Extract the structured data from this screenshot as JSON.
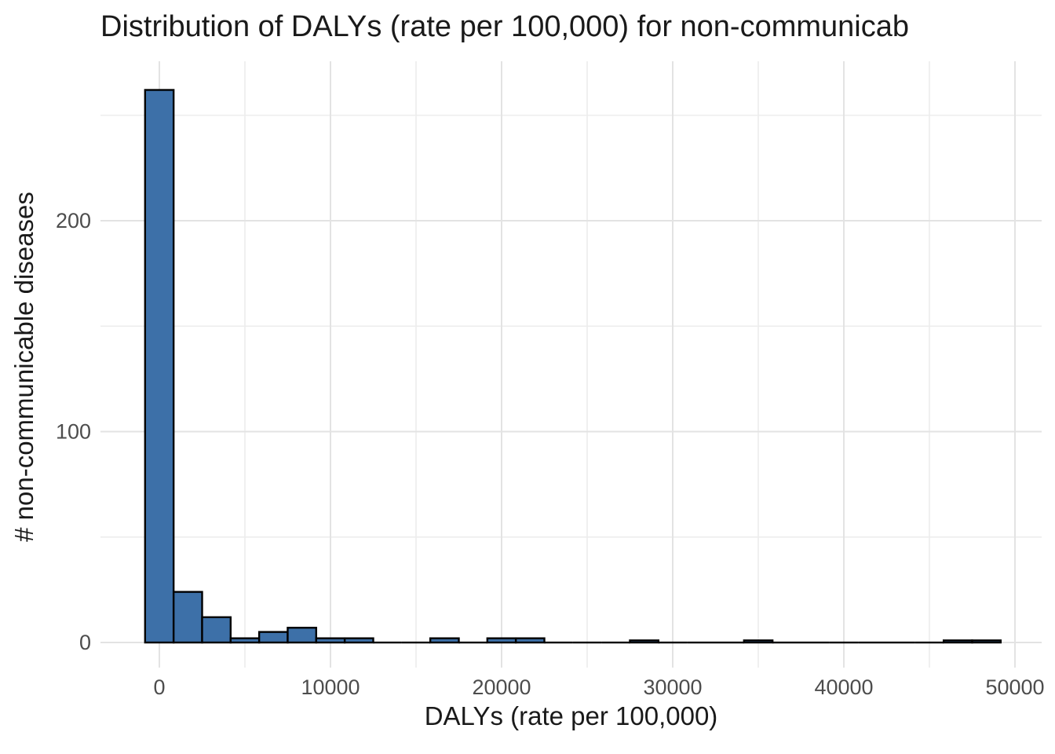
{
  "title": "Distribution of DALYs (rate per 100,000) for non-communicab",
  "chart_data": {
    "type": "bar",
    "subtype": "histogram",
    "title": "Distribution of DALYs (rate per 100,000) for non-communicab",
    "xlabel": "DALYs (rate per 100,000)",
    "ylabel": "# non-communicable diseases",
    "x_ticks": [
      0,
      10000,
      20000,
      30000,
      40000,
      50000
    ],
    "x_tick_labels": [
      "0",
      "10000",
      "20000",
      "30000",
      "40000",
      "50000"
    ],
    "x_minor_ticks": [
      5000,
      15000,
      25000,
      35000,
      45000
    ],
    "y_ticks": [
      0,
      100,
      200
    ],
    "y_tick_labels": [
      "0",
      "100",
      "200"
    ],
    "y_minor_ticks": [
      50,
      150,
      250
    ],
    "xlim": [
      -3440,
      51560
    ],
    "ylim": [
      -11.9,
      275.6
    ],
    "grid": "major-and-minor",
    "legend": "none",
    "bin_width": 1667,
    "bins": {
      "centers": [
        0,
        1667,
        3333,
        5000,
        6667,
        8333,
        10000,
        11667,
        13333,
        15000,
        16667,
        18333,
        20000,
        21667,
        23333,
        25000,
        26667,
        28333,
        30000,
        31667,
        33333,
        35000,
        36667,
        38333,
        40000,
        41667,
        43333,
        45000,
        46667,
        48333
      ],
      "counts": [
        262,
        24,
        12,
        2,
        5,
        7,
        2,
        2,
        0,
        0,
        2,
        0,
        2,
        2,
        0,
        0,
        0,
        1,
        0,
        0,
        0,
        1,
        0,
        0,
        0,
        0,
        0,
        0,
        1,
        1
      ]
    },
    "colors": {
      "bar_fill": "#3d70a8",
      "bar_stroke": "#000000",
      "grid_major": "#e3e3e3",
      "grid_minor": "#ededed",
      "tick_label": "#4d4d4d",
      "text": "#1a1a1a",
      "background": "#ffffff"
    }
  }
}
